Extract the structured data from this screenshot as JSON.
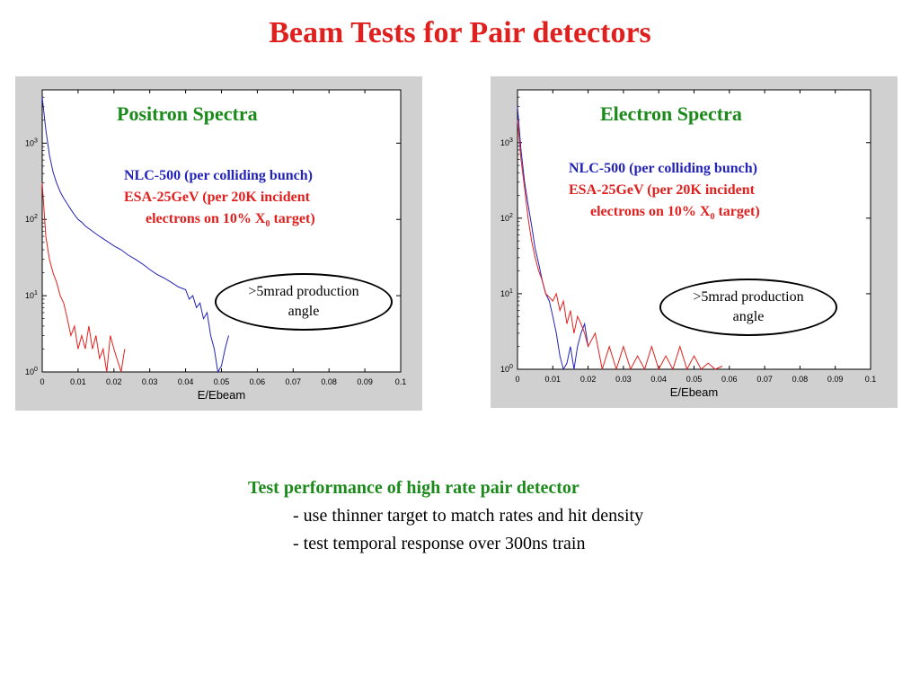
{
  "page": {
    "title": "Beam Tests for Pair detectors"
  },
  "panels": [
    {
      "title": "Positron Spectra",
      "legend_blue": "NLC-500 (per colliding bunch)",
      "legend_red_1": "ESA-25GeV (per 20K incident",
      "legend_red_2": "electrons on 10% X",
      "legend_red_sub": "0",
      "legend_red_3": " target)",
      "ellipse_1": ">5mrad production",
      "ellipse_2": "angle"
    },
    {
      "title": "Electron Spectra",
      "legend_blue": "NLC-500 (per colliding bunch)",
      "legend_red_1": "ESA-25GeV (per 20K incident",
      "legend_red_2": "electrons on 10% X",
      "legend_red_sub": "0",
      "legend_red_3": " target)",
      "ellipse_1": ">5mrad production",
      "ellipse_2": "angle"
    }
  ],
  "bottom": {
    "heading": "Test performance of high rate pair detector",
    "items": [
      "- use thinner target to match rates and hit density",
      "- test temporal response over 300ns train"
    ]
  },
  "colors": {
    "title_red": "#e0201e",
    "heading_green": "#1b8a1b",
    "nlc_blue": "#2323b8",
    "esa_red": "#e0201e",
    "panel_gray": "#d0d0d0"
  },
  "chart_data": [
    {
      "type": "line",
      "title": "Positron Spectra",
      "xlabel": "E/Ebeam",
      "ylabel": "",
      "xlim": [
        0,
        0.1
      ],
      "ylim": [
        1,
        5000
      ],
      "yscale": "log",
      "x_ticks": [
        "0",
        "0.01",
        "0.02",
        "0.03",
        "0.04",
        "0.05",
        "0.06",
        "0.07",
        "0.08",
        "0.09",
        "0.1"
      ],
      "y_ticks": [
        "10^0",
        "10^1",
        "10^2",
        "10^3"
      ],
      "grid": false,
      "series": [
        {
          "name": "NLC-500 (per colliding bunch)",
          "color": "#2323b8",
          "x": [
            0,
            0.001,
            0.002,
            0.003,
            0.004,
            0.005,
            0.006,
            0.007,
            0.008,
            0.009,
            0.01,
            0.011,
            0.012,
            0.014,
            0.016,
            0.018,
            0.02,
            0.022,
            0.024,
            0.026,
            0.028,
            0.03,
            0.032,
            0.034,
            0.036,
            0.038,
            0.04,
            0.041,
            0.042,
            0.043,
            0.044,
            0.045,
            0.046,
            0.047,
            0.048,
            0.049,
            0.05,
            0.051,
            0.052
          ],
          "y": [
            4000,
            1500,
            700,
            420,
            300,
            230,
            190,
            160,
            135,
            115,
            100,
            92,
            82,
            70,
            60,
            52,
            45,
            40,
            34,
            30,
            26,
            22,
            19,
            17,
            15,
            13,
            12,
            9,
            10,
            7,
            8,
            5,
            6,
            3,
            2,
            1,
            1.2,
            2,
            3
          ]
        },
        {
          "name": "ESA-25GeV (per 20K incident electrons on 10% X0 target)",
          "color": "#e0201e",
          "x": [
            0,
            0.001,
            0.002,
            0.003,
            0.004,
            0.005,
            0.006,
            0.007,
            0.008,
            0.009,
            0.01,
            0.011,
            0.012,
            0.013,
            0.014,
            0.015,
            0.016,
            0.017,
            0.018,
            0.019,
            0.02,
            0.022,
            0.023
          ],
          "y": [
            300,
            60,
            30,
            20,
            15,
            10,
            8,
            5,
            3,
            4,
            2,
            3,
            2,
            4,
            2,
            3,
            1.5,
            2,
            1,
            3,
            2,
            1,
            2
          ]
        }
      ]
    },
    {
      "type": "line",
      "title": "Electron Spectra",
      "xlabel": "E/Ebeam",
      "ylabel": "",
      "xlim": [
        0,
        0.1
      ],
      "ylim": [
        1,
        5000
      ],
      "yscale": "log",
      "x_ticks": [
        "0",
        "0.01",
        "0.02",
        "0.03",
        "0.04",
        "0.05",
        "0.06",
        "0.07",
        "0.08",
        "0.09",
        "0.1"
      ],
      "y_ticks": [
        "10^0",
        "10^1",
        "10^2",
        "10^3"
      ],
      "grid": false,
      "series": [
        {
          "name": "NLC-500 (per colliding bunch)",
          "color": "#2323b8",
          "x": [
            0,
            0.001,
            0.002,
            0.003,
            0.004,
            0.005,
            0.006,
            0.007,
            0.008,
            0.009,
            0.01,
            0.011,
            0.012,
            0.013,
            0.014,
            0.015,
            0.016,
            0.017,
            0.018,
            0.019,
            0.02
          ],
          "y": [
            3000,
            800,
            300,
            150,
            80,
            40,
            25,
            15,
            10,
            8,
            5,
            3,
            1.5,
            1,
            1.2,
            2,
            1,
            2,
            3,
            4,
            2
          ]
        },
        {
          "name": "ESA-25GeV (per 20K incident electrons on 10% X0 target)",
          "color": "#e0201e",
          "x": [
            0,
            0.001,
            0.002,
            0.003,
            0.004,
            0.005,
            0.006,
            0.007,
            0.008,
            0.009,
            0.01,
            0.011,
            0.012,
            0.013,
            0.014,
            0.015,
            0.016,
            0.017,
            0.018,
            0.019,
            0.02,
            0.022,
            0.024,
            0.026,
            0.028,
            0.03,
            0.032,
            0.034,
            0.036,
            0.038,
            0.04,
            0.042,
            0.044,
            0.046,
            0.048,
            0.05,
            0.052,
            0.054,
            0.056,
            0.058
          ],
          "y": [
            2000,
            600,
            250,
            100,
            50,
            30,
            20,
            15,
            10,
            9,
            8,
            10,
            6,
            8,
            4,
            6,
            3,
            5,
            4,
            3,
            2,
            3,
            1,
            2,
            1,
            2,
            1,
            1.5,
            1,
            2,
            1,
            1.5,
            1,
            2,
            1,
            1.5,
            1,
            1.2,
            1,
            1.1
          ]
        }
      ]
    }
  ]
}
